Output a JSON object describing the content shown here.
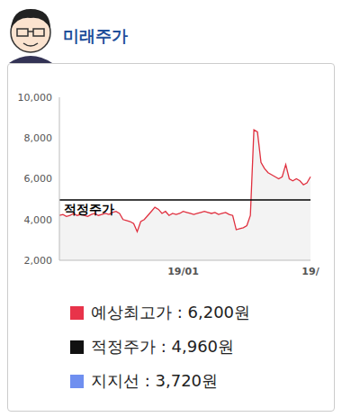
{
  "header": {
    "title": "미래주가"
  },
  "chart_data": {
    "type": "line",
    "categories": [
      null,
      null,
      null,
      null,
      null,
      null,
      null,
      null,
      null,
      null,
      null,
      null,
      null,
      null,
      null,
      null,
      null,
      null,
      null,
      null,
      null,
      null,
      null,
      null,
      null,
      null,
      null,
      null,
      null,
      null,
      null,
      null,
      null,
      null,
      null,
      "19/01",
      null,
      null,
      null,
      null,
      null,
      null,
      null,
      null,
      null,
      null,
      null,
      null,
      null,
      null,
      null,
      null,
      null,
      null,
      null,
      null,
      null,
      null,
      null,
      null,
      null,
      null,
      null,
      null,
      null,
      null,
      null,
      null,
      null,
      null,
      null,
      "19/"
    ],
    "values": [
      4200,
      4250,
      4150,
      4200,
      4300,
      4200,
      4250,
      4200,
      4150,
      4250,
      4300,
      4200,
      4250,
      4300,
      4250,
      4350,
      4400,
      4300,
      4000,
      3950,
      3900,
      3800,
      3400,
      3900,
      4000,
      4200,
      4400,
      4600,
      4500,
      4300,
      4400,
      4200,
      4300,
      4250,
      4300,
      4400,
      4350,
      4300,
      4250,
      4300,
      4350,
      4400,
      4350,
      4300,
      4350,
      4250,
      4300,
      4350,
      4250,
      4200,
      3500,
      3550,
      3600,
      3700,
      4200,
      8400,
      8300,
      6800,
      6500,
      6300,
      6200,
      6100,
      6000,
      6100,
      6700,
      6000,
      5900,
      6000,
      5900,
      5700,
      5800,
      6100
    ],
    "color": "#e0303f",
    "ylim": [
      2000,
      10000
    ],
    "yticks": [
      {
        "value": 2000,
        "label": "2,000"
      },
      {
        "value": 4000,
        "label": "4,000"
      },
      {
        "value": 6000,
        "label": "6,000"
      },
      {
        "value": 8000,
        "label": "8,000"
      },
      {
        "value": 10000,
        "label": "10,000"
      }
    ],
    "reference_line": {
      "value": 4960,
      "label": "적정주가",
      "color": "#000000"
    },
    "legend_items": [
      {
        "text": "예상최고가 : 6,200원",
        "color": "#e8334a"
      },
      {
        "text": "적정주가 : 4,960원",
        "color": "#111111"
      },
      {
        "text": "지지선 : 3,720원",
        "color": "#6f8ff0"
      }
    ]
  }
}
